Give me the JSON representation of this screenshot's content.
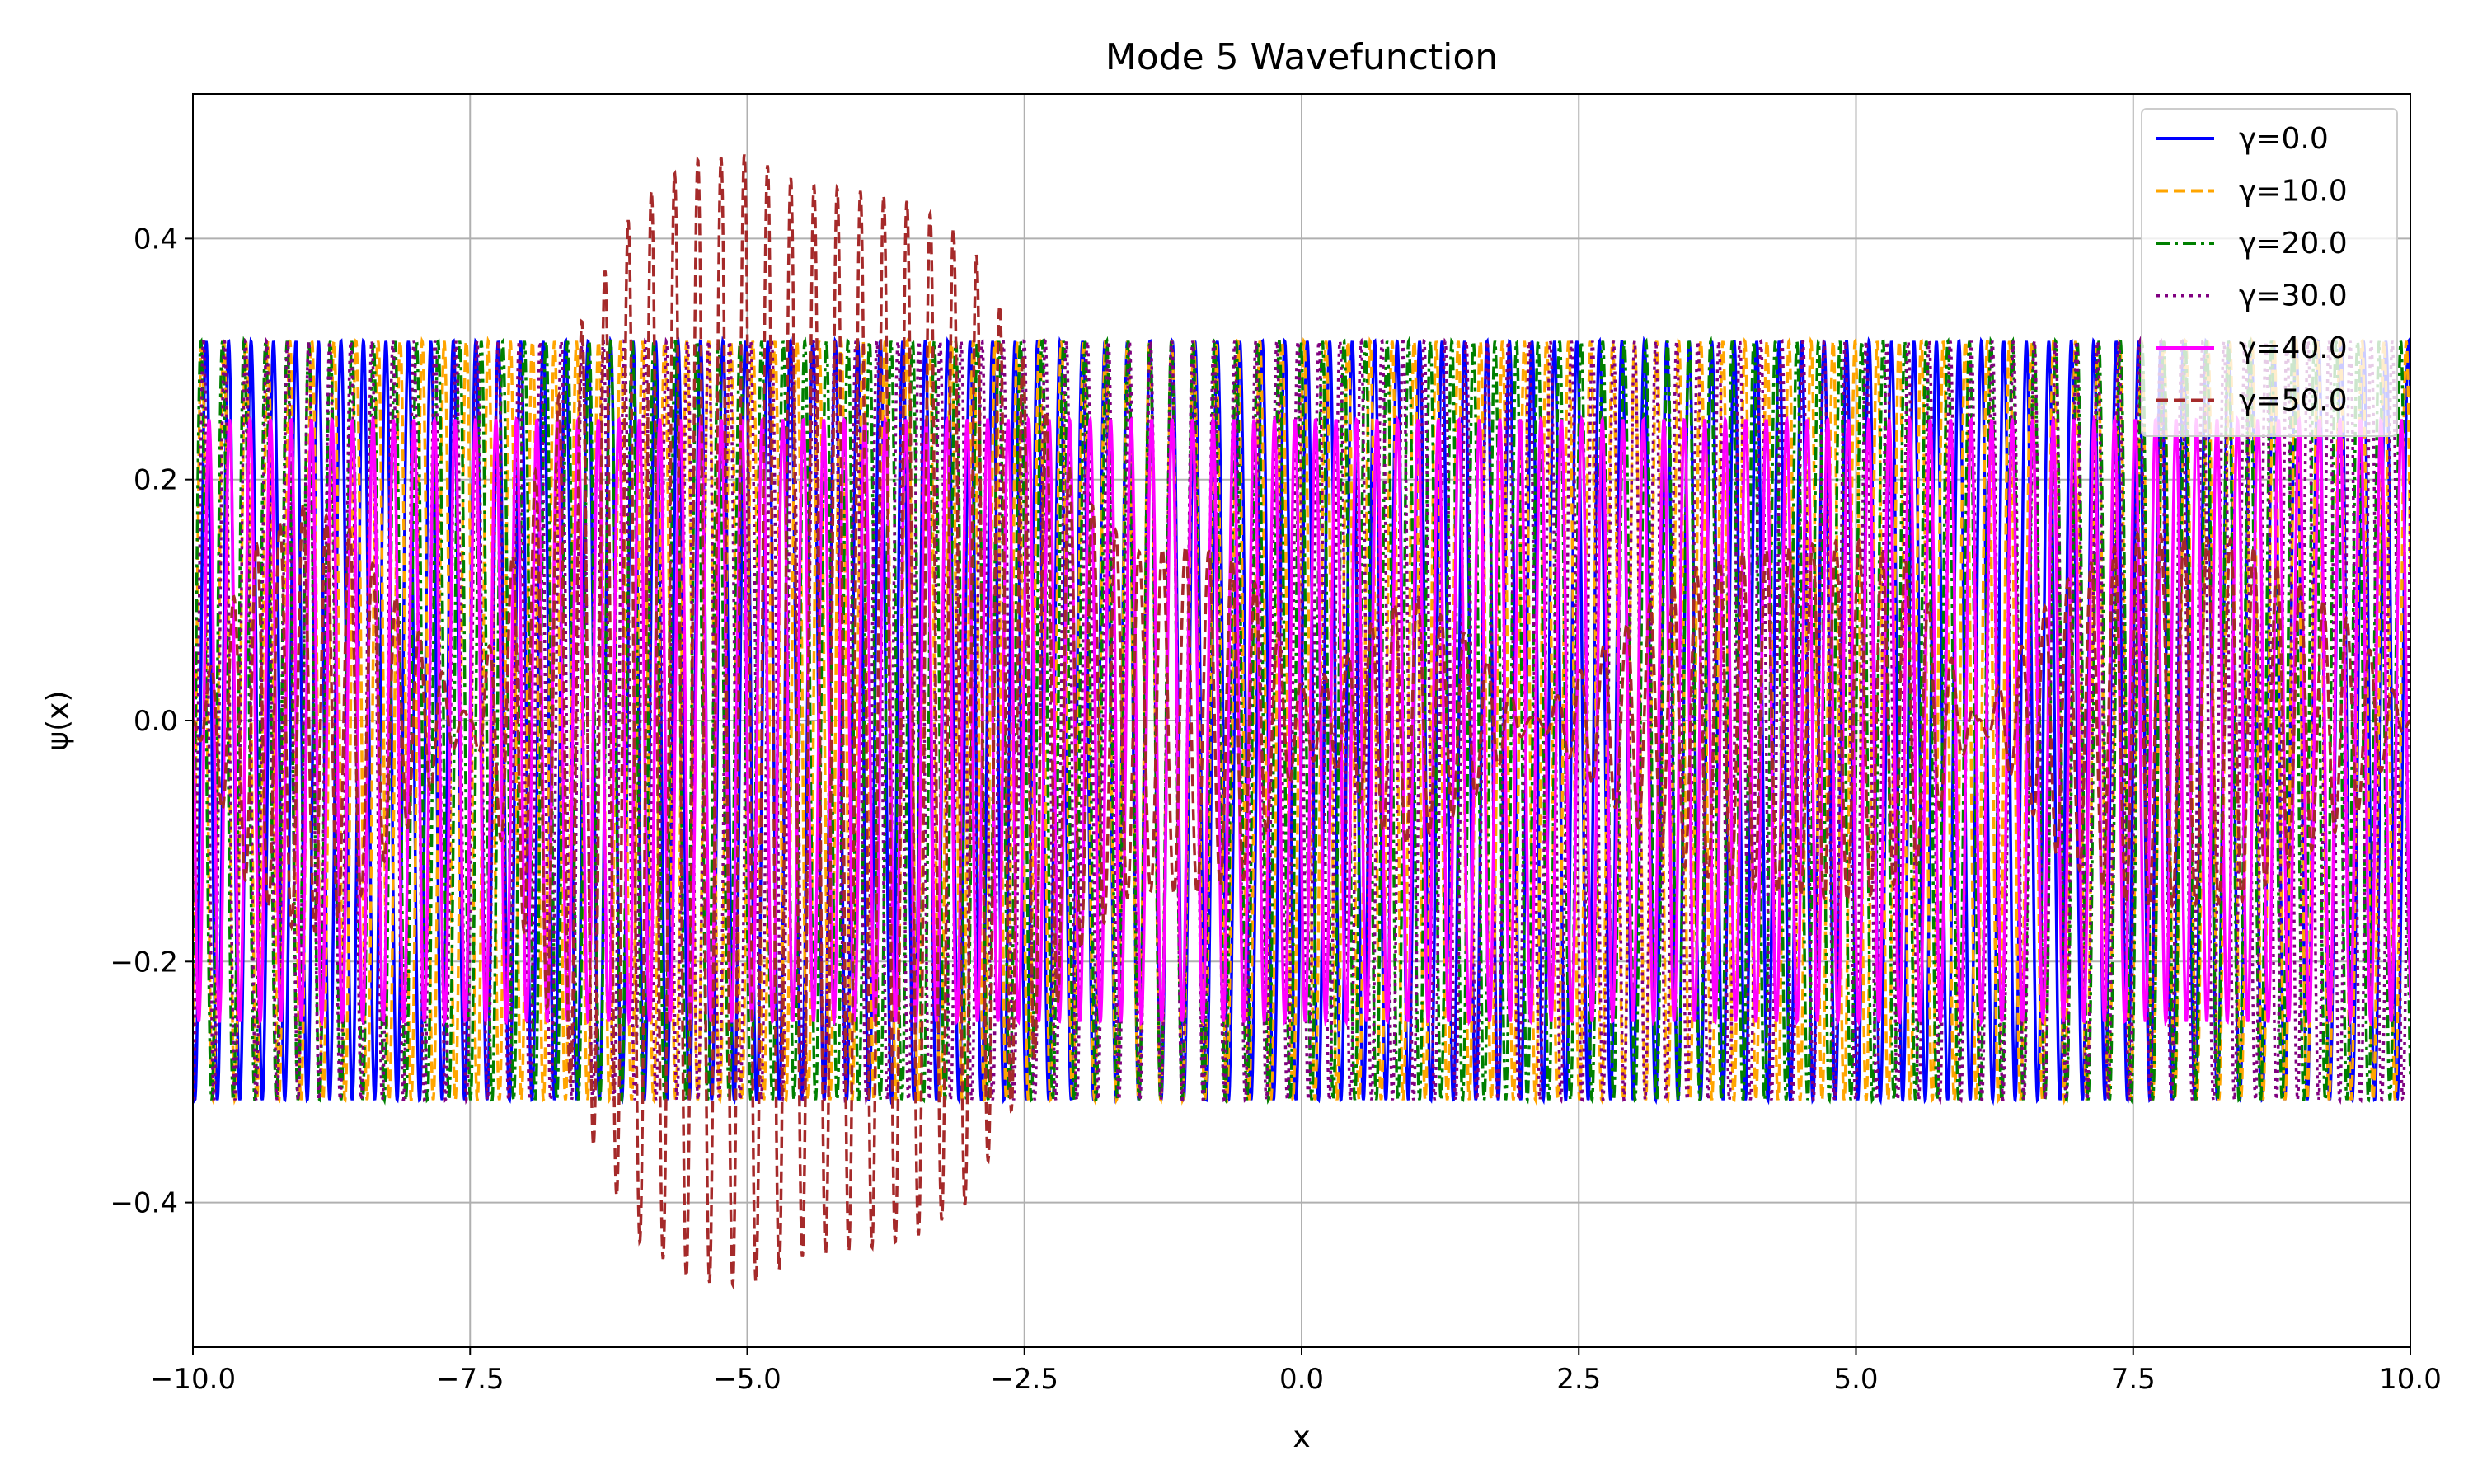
{
  "chart_data": {
    "type": "line",
    "title": "Mode 5 Wavefunction",
    "xlabel": "x",
    "ylabel": "ψ(x)",
    "xlim": [
      -10,
      10
    ],
    "ylim": [
      -0.52,
      0.52
    ],
    "xticks": [
      -10,
      -7.5,
      -5,
      -2.5,
      0,
      2.5,
      5,
      7.5,
      10
    ],
    "xtick_labels": [
      "−10.0",
      "−7.5",
      "−5.0",
      "−2.5",
      "0.0",
      "2.5",
      "5.0",
      "7.5",
      "10.0"
    ],
    "yticks": [
      -0.4,
      -0.2,
      0.0,
      0.2,
      0.4
    ],
    "ytick_labels": [
      "−0.4",
      "−0.2",
      "0.0",
      "0.2",
      "0.4"
    ],
    "grid": true,
    "legend_position": "top-right",
    "x_domain": [
      -10,
      10
    ],
    "series": [
      {
        "name": "γ=0.0",
        "color": "#0000ff",
        "style": "solid",
        "amplitude": 0.315,
        "frequency": 31.0,
        "kind": "constant"
      },
      {
        "name": "γ=10.0",
        "color": "#ffa500",
        "style": "dashed",
        "amplitude": 0.315,
        "frequency": 31.6,
        "kind": "constant"
      },
      {
        "name": "γ=20.0",
        "color": "#008000",
        "style": "dashdot",
        "amplitude": 0.315,
        "frequency": 32.3,
        "kind": "constant"
      },
      {
        "name": "γ=30.0",
        "color": "#800080",
        "style": "dotted",
        "amplitude": 0.315,
        "frequency": 33.1,
        "kind": "constant"
      },
      {
        "name": "γ=40.0",
        "color": "#ff00ff",
        "style": "solid",
        "amplitude": 0.25,
        "frequency": 34.0,
        "kind": "constant"
      },
      {
        "name": "γ=50.0",
        "color": "#a52a2a",
        "style": "dashed",
        "frequency": 30.0,
        "kind": "envelope",
        "envelope": [
          [
            -10.0,
            0.0
          ],
          [
            -9.5,
            0.14
          ],
          [
            -9.0,
            0.18
          ],
          [
            -8.6,
            0.16
          ],
          [
            -8.0,
            0.08
          ],
          [
            -7.5,
            0.0
          ],
          [
            -7.0,
            0.18
          ],
          [
            -6.5,
            0.33
          ],
          [
            -6.0,
            0.43
          ],
          [
            -5.5,
            0.465
          ],
          [
            -5.0,
            0.47
          ],
          [
            -4.5,
            0.445
          ],
          [
            -4.0,
            0.44
          ],
          [
            -3.5,
            0.43
          ],
          [
            -3.0,
            0.4
          ],
          [
            -2.5,
            0.3
          ],
          [
            -2.0,
            0.19
          ],
          [
            -1.5,
            0.14
          ],
          [
            -1.0,
            0.145
          ],
          [
            -0.5,
            0.13
          ],
          [
            0.0,
            0.03
          ],
          [
            0.3,
            0.04
          ],
          [
            0.7,
            0.09
          ],
          [
            1.0,
            0.105
          ],
          [
            1.5,
            0.07
          ],
          [
            2.1,
            0.0
          ],
          [
            2.8,
            0.07
          ],
          [
            3.5,
            0.125
          ],
          [
            4.0,
            0.14
          ],
          [
            4.5,
            0.145
          ],
          [
            5.0,
            0.15
          ],
          [
            5.5,
            0.13
          ],
          [
            6.1,
            0.0
          ],
          [
            6.8,
            0.11
          ],
          [
            7.5,
            0.155
          ],
          [
            8.5,
            0.15
          ],
          [
            9.5,
            0.08
          ],
          [
            10.0,
            0.0
          ]
        ]
      }
    ]
  }
}
